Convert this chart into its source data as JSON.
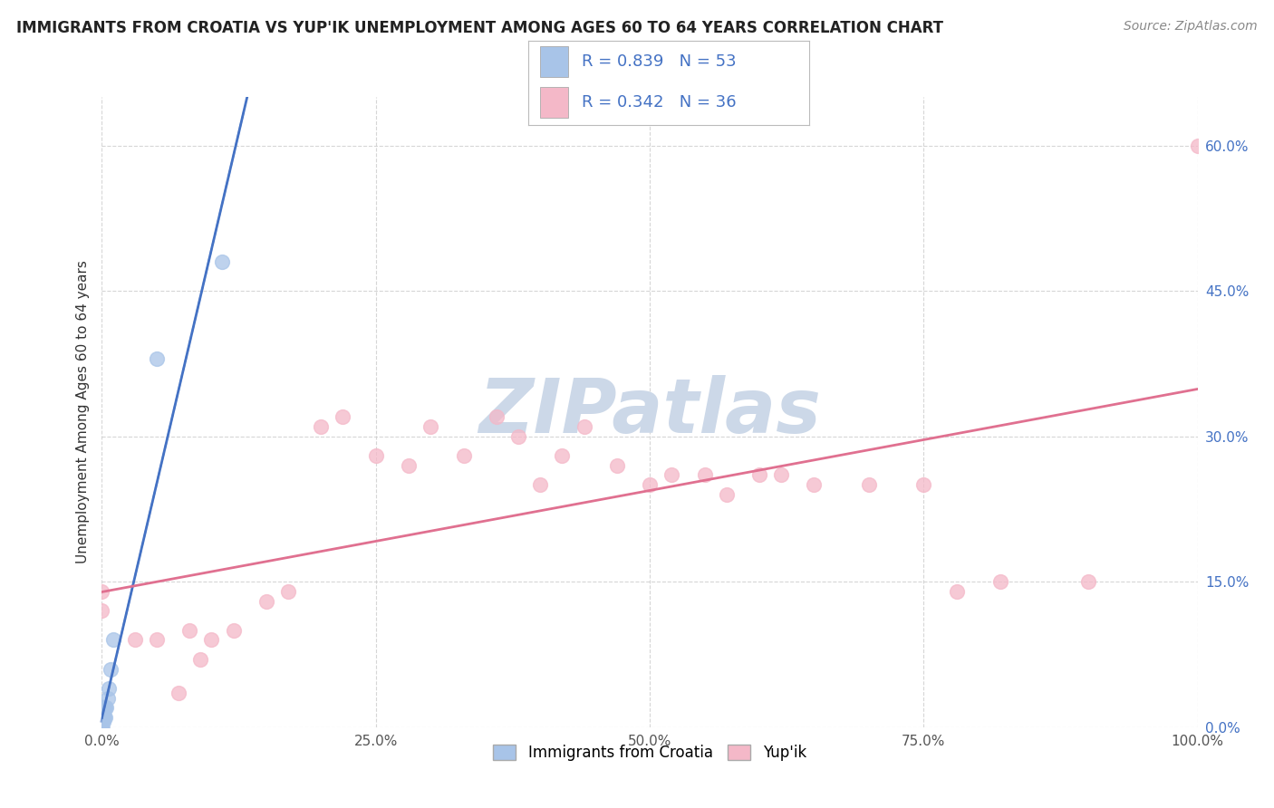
{
  "title": "IMMIGRANTS FROM CROATIA VS YUP'IK UNEMPLOYMENT AMONG AGES 60 TO 64 YEARS CORRELATION CHART",
  "source": "Source: ZipAtlas.com",
  "ylabel": "Unemployment Among Ages 60 to 64 years",
  "series": [
    {
      "label": "Immigrants from Croatia",
      "R": 0.839,
      "N": 53,
      "dot_color": "#a8c4e8",
      "line_color": "#4472c4",
      "line_style": "solid",
      "x": [
        0.0,
        0.0,
        0.0,
        0.0,
        0.0,
        0.0,
        0.0,
        0.0,
        0.0,
        0.0,
        0.0,
        0.0,
        0.0,
        0.0,
        0.0,
        0.0,
        0.0,
        0.0,
        0.0,
        0.0,
        0.0,
        0.0,
        0.0,
        0.0,
        0.0,
        0.0,
        0.0,
        0.0,
        0.0,
        0.0,
        0.0,
        0.0,
        0.0,
        0.0,
        0.0,
        0.0,
        0.0,
        0.0,
        0.001,
        0.001,
        0.001,
        0.001,
        0.002,
        0.002,
        0.003,
        0.003,
        0.004,
        0.005,
        0.006,
        0.008,
        0.01,
        0.05,
        0.11
      ],
      "y": [
        0.0,
        0.0,
        0.0,
        0.0,
        0.0,
        0.0,
        0.0,
        0.0,
        0.0,
        0.0,
        0.0,
        0.0,
        0.0,
        0.0,
        0.005,
        0.005,
        0.01,
        0.01,
        0.01,
        0.01,
        0.01,
        0.01,
        0.01,
        0.01,
        0.01,
        0.01,
        0.01,
        0.01,
        0.01,
        0.015,
        0.015,
        0.02,
        0.02,
        0.02,
        0.02,
        0.02,
        0.02,
        0.02,
        0.005,
        0.01,
        0.01,
        0.02,
        0.01,
        0.02,
        0.01,
        0.02,
        0.02,
        0.03,
        0.04,
        0.06,
        0.09,
        0.38,
        0.48
      ]
    },
    {
      "label": "Yup'ik",
      "R": 0.342,
      "N": 36,
      "dot_color": "#f4b8c8",
      "line_color": "#e07090",
      "line_style": "solid",
      "x": [
        0.0,
        0.0,
        0.03,
        0.05,
        0.07,
        0.08,
        0.09,
        0.1,
        0.12,
        0.15,
        0.17,
        0.2,
        0.22,
        0.25,
        0.28,
        0.3,
        0.33,
        0.36,
        0.38,
        0.4,
        0.42,
        0.44,
        0.47,
        0.5,
        0.52,
        0.55,
        0.57,
        0.6,
        0.62,
        0.65,
        0.7,
        0.75,
        0.78,
        0.82,
        0.9,
        1.0
      ],
      "y": [
        0.12,
        0.14,
        0.09,
        0.09,
        0.035,
        0.1,
        0.07,
        0.09,
        0.1,
        0.13,
        0.14,
        0.31,
        0.32,
        0.28,
        0.27,
        0.31,
        0.28,
        0.32,
        0.3,
        0.25,
        0.28,
        0.31,
        0.27,
        0.25,
        0.26,
        0.26,
        0.24,
        0.26,
        0.26,
        0.25,
        0.25,
        0.25,
        0.14,
        0.15,
        0.15,
        0.6
      ]
    }
  ],
  "xlim": [
    0.0,
    1.0
  ],
  "ylim": [
    0.0,
    0.65
  ],
  "xticks": [
    0.0,
    0.25,
    0.5,
    0.75,
    1.0
  ],
  "xticklabels": [
    "0.0%",
    "25.0%",
    "50.0%",
    "75.0%",
    "100.0%"
  ],
  "yticks": [
    0.0,
    0.15,
    0.3,
    0.45,
    0.6
  ],
  "yticklabels": [
    "0.0%",
    "15.0%",
    "30.0%",
    "45.0%",
    "60.0%"
  ],
  "ytick_color": "#4472c4",
  "xtick_color": "#555555",
  "background_color": "#ffffff",
  "grid_color": "#cccccc",
  "watermark_text": "ZIPatlas",
  "watermark_color": "#ccd8e8",
  "title_fontsize": 12,
  "legend_color": "#4472c4"
}
